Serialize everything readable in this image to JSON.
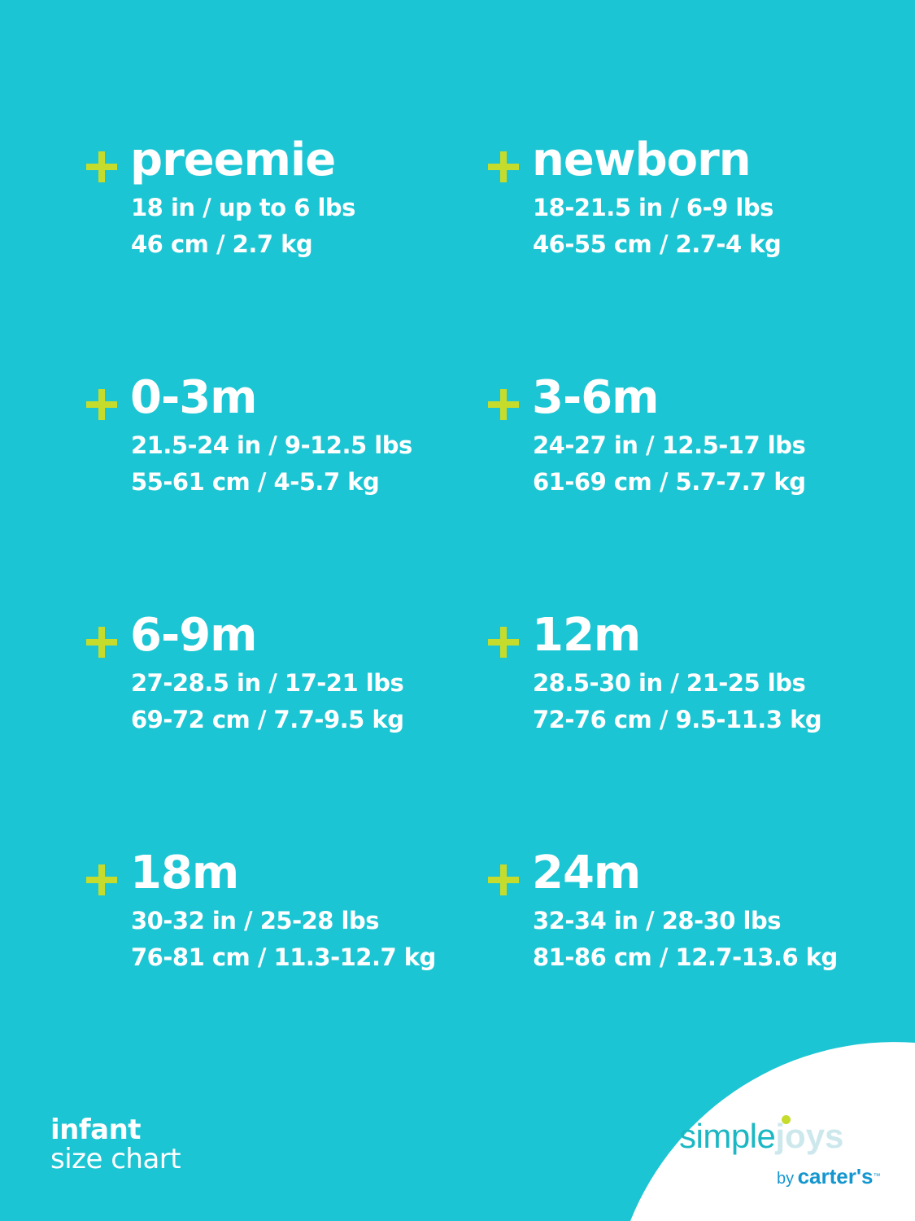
{
  "colors": {
    "background": "#1cc5d3",
    "accent": "#c6dc2c",
    "text": "#ffffff"
  },
  "sizes": [
    {
      "label": "preemie",
      "imperial": "18 in / up to 6 lbs",
      "metric": "46 cm / 2.7 kg"
    },
    {
      "label": "newborn",
      "imperial": "18-21.5 in / 6-9 lbs",
      "metric": "46-55 cm / 2.7-4 kg"
    },
    {
      "label": "0-3m",
      "imperial": "21.5-24 in / 9-12.5 lbs",
      "metric": "55-61 cm / 4-5.7 kg"
    },
    {
      "label": "3-6m",
      "imperial": "24-27 in / 12.5-17 lbs",
      "metric": "61-69 cm / 5.7-7.7 kg"
    },
    {
      "label": "6-9m",
      "imperial": "27-28.5 in / 17-21 lbs",
      "metric": "69-72 cm / 7.7-9.5 kg"
    },
    {
      "label": "12m",
      "imperial": "28.5-30 in / 21-25 lbs",
      "metric": "72-76 cm / 9.5-11.3 kg"
    },
    {
      "label": "18m",
      "imperial": "30-32 in / 25-28 lbs",
      "metric": "76-81 cm / 11.3-12.7 kg"
    },
    {
      "label": "24m",
      "imperial": "32-34 in / 28-30 lbs",
      "metric": "81-86 cm / 12.7-13.6 kg"
    }
  ],
  "footer": {
    "line1": "infant",
    "line2": "size chart"
  },
  "logo": {
    "simple": "simple",
    "joys": "joys",
    "by": "by",
    "brand": "carter's",
    "tm": "™"
  }
}
